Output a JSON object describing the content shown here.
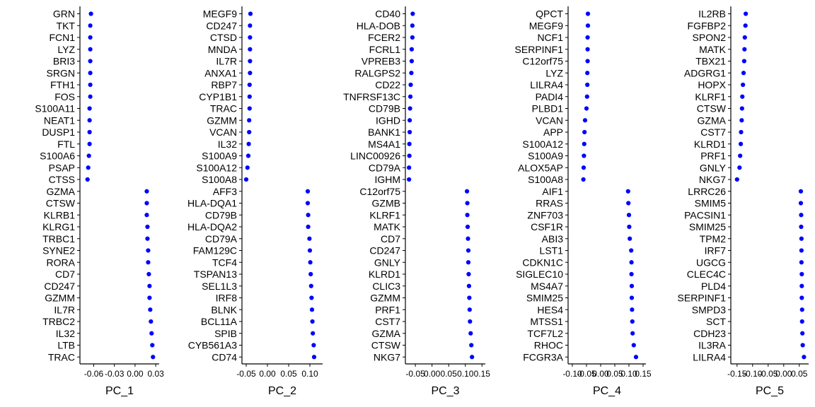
{
  "chart_data": [
    {
      "type": "scatter",
      "xlabel": "PC_1",
      "color": "#0000ff",
      "xlim": [
        -0.08,
        0.035
      ],
      "x_ticks": [
        -0.06,
        -0.03,
        0.0,
        0.03
      ],
      "x_tick_labels": [
        "-0.06",
        "-0.03",
        "0.00",
        "0.03"
      ],
      "genes": [
        "GRN",
        "TKT",
        "FCN1",
        "LYZ",
        "BRI3",
        "SRGN",
        "FTH1",
        "FOS",
        "S100A11",
        "NEAT1",
        "DUSP1",
        "FTL",
        "S100A6",
        "PSAP",
        "CTSS",
        "GZMA",
        "CTSW",
        "KLRB1",
        "KLRG1",
        "TRBC1",
        "SYNE2",
        "RORA",
        "CD7",
        "CD247",
        "GZMM",
        "IL7R",
        "TRBC2",
        "IL32",
        "LTB",
        "TRAC"
      ],
      "values": [
        -0.064,
        -0.065,
        -0.065,
        -0.065,
        -0.065,
        -0.065,
        -0.065,
        -0.065,
        -0.066,
        -0.066,
        -0.066,
        -0.066,
        -0.067,
        -0.068,
        -0.069,
        0.017,
        0.017,
        0.017,
        0.018,
        0.018,
        0.019,
        0.019,
        0.02,
        0.021,
        0.021,
        0.022,
        0.023,
        0.024,
        0.025,
        0.026
      ]
    },
    {
      "type": "scatter",
      "xlabel": "PC_2",
      "color": "#0000ff",
      "xlim": [
        -0.06,
        0.13
      ],
      "x_ticks": [
        -0.05,
        0.0,
        0.05,
        0.1
      ],
      "x_tick_labels": [
        "-0.05",
        "0.00",
        "0.05",
        "0.10"
      ],
      "genes": [
        "MEGF9",
        "CD247",
        "CTSD",
        "MNDA",
        "IL7R",
        "ANXA1",
        "RBP7",
        "CYP1B1",
        "TRAC",
        "GZMM",
        "VCAN",
        "IL32",
        "S100A9",
        "S100A12",
        "S100A8",
        "AFF3",
        "HLA-DQA1",
        "CD79B",
        "HLA-DQA2",
        "CD79A",
        "FAM129C",
        "TCF4",
        "TSPAN13",
        "SEL1L3",
        "IRF8",
        "BLNK",
        "BCL11A",
        "SPIB",
        "CYB561A3",
        "CD74"
      ],
      "values": [
        -0.04,
        -0.041,
        -0.041,
        -0.041,
        -0.041,
        -0.041,
        -0.042,
        -0.042,
        -0.042,
        -0.043,
        -0.043,
        -0.044,
        -0.045,
        -0.047,
        -0.05,
        0.095,
        0.095,
        0.096,
        0.096,
        0.099,
        0.1,
        0.101,
        0.102,
        0.103,
        0.104,
        0.105,
        0.106,
        0.107,
        0.109,
        0.11
      ]
    },
    {
      "type": "scatter",
      "xlabel": "PC_3",
      "color": "#0000ff",
      "xlim": [
        -0.08,
        0.16
      ],
      "x_ticks": [
        -0.05,
        0.0,
        0.05,
        0.1,
        0.15
      ],
      "x_tick_labels": [
        "-0.05",
        "0.00",
        "0.05",
        "0.10",
        "0.15"
      ],
      "genes": [
        "CD40",
        "HLA-DOB",
        "FCER2",
        "FCRL1",
        "VPREB3",
        "RALGPS2",
        "CD22",
        "TNFRSF13C",
        "CD79B",
        "IGHD",
        "BANK1",
        "MS4A1",
        "LINC00926",
        "CD79A",
        "IGHM",
        "C12orf75",
        "GZMB",
        "KLRF1",
        "MATK",
        "CD7",
        "CD247",
        "GNLY",
        "KLRD1",
        "CLIC3",
        "GZMM",
        "PRF1",
        "CST7",
        "GZMA",
        "CTSW",
        "NKG7"
      ],
      "values": [
        -0.058,
        -0.059,
        -0.059,
        -0.061,
        -0.061,
        -0.062,
        -0.064,
        -0.065,
        -0.066,
        -0.067,
        -0.067,
        -0.068,
        -0.068,
        -0.069,
        -0.069,
        0.105,
        0.106,
        0.106,
        0.107,
        0.108,
        0.109,
        0.109,
        0.11,
        0.111,
        0.112,
        0.113,
        0.114,
        0.116,
        0.118,
        0.12
      ]
    },
    {
      "type": "scatter",
      "xlabel": "PC_4",
      "color": "#0000ff",
      "xlim": [
        -0.115,
        0.16
      ],
      "x_ticks": [
        -0.1,
        -0.05,
        0.0,
        0.05,
        0.1,
        0.15
      ],
      "x_tick_labels": [
        "-0.10",
        "-0.05",
        "0.00",
        "0.05",
        "0.10",
        "0.15"
      ],
      "genes": [
        "QPCT",
        "MEGF9",
        "NCF1",
        "SERPINF1",
        "C12orf75",
        "LYZ",
        "LILRA4",
        "PADI4",
        "PLBD1",
        "VCAN",
        "APP",
        "S100A12",
        "S100A9",
        "ALOX5AP",
        "S100A8",
        "AIF1",
        "RRAS",
        "ZNF703",
        "CSF1R",
        "ABI3",
        "LST1",
        "CDKN1C",
        "SIGLEC10",
        "MS4A7",
        "SMIM25",
        "HES4",
        "MTSS1",
        "TCF7L2",
        "RHOC",
        "FCGR3A"
      ],
      "values": [
        -0.045,
        -0.045,
        -0.046,
        -0.046,
        -0.046,
        -0.047,
        -0.047,
        -0.048,
        -0.05,
        -0.055,
        -0.057,
        -0.058,
        -0.059,
        -0.06,
        -0.061,
        0.097,
        0.098,
        0.1,
        0.101,
        0.103,
        0.108,
        0.109,
        0.109,
        0.11,
        0.11,
        0.111,
        0.112,
        0.113,
        0.117,
        0.125
      ]
    },
    {
      "type": "scatter",
      "xlabel": "PC_5",
      "color": "#0000ff",
      "xlim": [
        -0.17,
        0.08
      ],
      "x_ticks": [
        -0.15,
        -0.1,
        -0.05,
        0.0,
        0.05
      ],
      "x_tick_labels": [
        "-0.15",
        "-0.10",
        "-0.05",
        "0.00",
        "0.05"
      ],
      "genes": [
        "IL2RB",
        "FGFBP2",
        "SPON2",
        "MATK",
        "TBX21",
        "ADGRG1",
        "HOPX",
        "KLRF1",
        "CTSW",
        "GZMA",
        "CST7",
        "KLRD1",
        "PRF1",
        "GNLY",
        "NKG7",
        "LRRC26",
        "SMIM5",
        "PACSIN1",
        "SMIM25",
        "TPM2",
        "IRF7",
        "UGCG",
        "CLEC4C",
        "PLD4",
        "SERPINF1",
        "SMPD3",
        "SCT",
        "CDH23",
        "IL3RA",
        "LILRA4"
      ],
      "values": [
        -0.122,
        -0.123,
        -0.125,
        -0.126,
        -0.127,
        -0.129,
        -0.131,
        -0.133,
        -0.134,
        -0.135,
        -0.137,
        -0.138,
        -0.14,
        -0.142,
        -0.15,
        0.055,
        0.055,
        0.056,
        0.056,
        0.057,
        0.057,
        0.057,
        0.058,
        0.058,
        0.058,
        0.059,
        0.059,
        0.06,
        0.061,
        0.065
      ]
    }
  ]
}
